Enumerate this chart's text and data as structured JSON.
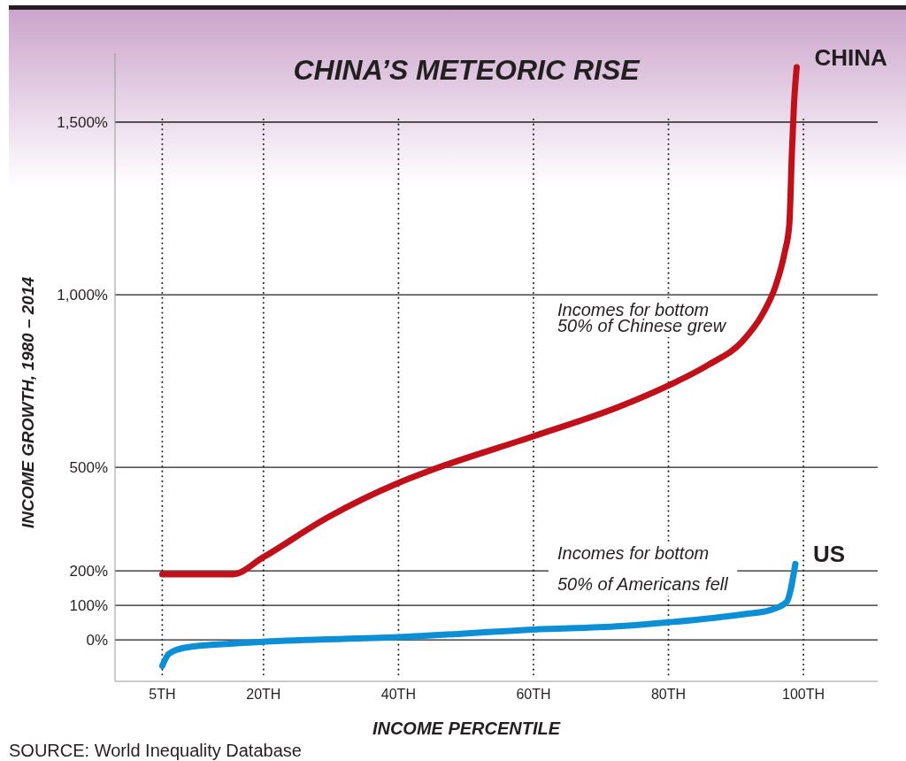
{
  "chart_data": {
    "type": "line",
    "title": "CHINA’S METEORIC RISE",
    "xlabel": "INCOME PERCENTILE",
    "ylabel": "INCOME GROWTH, 1980 – 2014",
    "xlim": [
      -2,
      111
    ],
    "ylim": [
      -120,
      1700
    ],
    "xticks": [
      {
        "value": 5,
        "label": "5TH"
      },
      {
        "value": 20,
        "label": "20TH"
      },
      {
        "value": 40,
        "label": "40TH"
      },
      {
        "value": 60,
        "label": "60TH"
      },
      {
        "value": 80,
        "label": "80TH"
      },
      {
        "value": 100,
        "label": "100TH"
      }
    ],
    "yticks": [
      {
        "value": 0,
        "label": "0%"
      },
      {
        "value": 100,
        "label": "100%"
      },
      {
        "value": 200,
        "label": "200%"
      },
      {
        "value": 500,
        "label": "500%"
      },
      {
        "value": 1000,
        "label": "1,000%"
      },
      {
        "value": 1500,
        "label": "1,500%"
      }
    ],
    "grid": true,
    "marker": "none",
    "line_style": "solid",
    "series": [
      {
        "name": "CHINA",
        "color": "#c0111b",
        "x": [
          5,
          10,
          15.4,
          20,
          29.5,
          40,
          45.3,
          60,
          72.9,
          80,
          86,
          91,
          94,
          95.9,
          97.2,
          97.9,
          98.3,
          98.6,
          99
        ],
        "values": [
          190,
          190,
          190,
          240,
          355,
          455,
          495,
          590,
          677,
          737,
          798,
          866,
          946,
          1027,
          1121,
          1202,
          1417,
          1551,
          1659
        ]
      },
      {
        "name": "US",
        "color": "#0d8fd6",
        "x": [
          5,
          6,
          8.5,
          15,
          20,
          40,
          60,
          73,
          80,
          91.3,
          95,
          97.5,
          98.8
        ],
        "values": [
          -75,
          -40,
          -22,
          -11,
          -5,
          8,
          30,
          40,
          51,
          75,
          86,
          110,
          220
        ]
      }
    ],
    "annotations": [
      "Incomes for bottom 50% of Chinese grew",
      "Incomes for bottom 50% of Americans fell",
      "SOURCE: World Inequality Database"
    ]
  }
}
